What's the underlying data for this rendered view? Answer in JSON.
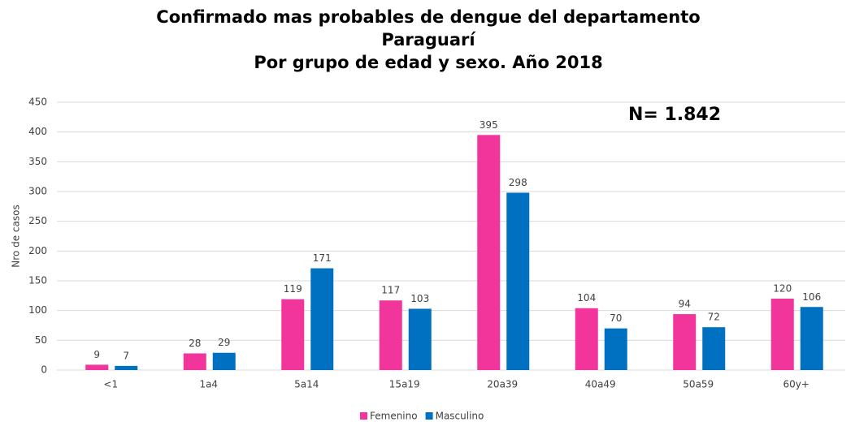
{
  "chart_data": {
    "type": "bar",
    "title": [
      "Confirmado mas probables de dengue del departamento",
      "Paraguarí",
      "Por grupo de edad y sexo. Año 2018"
    ],
    "annotation": "N= 1.842",
    "y_label": "Nro de casos",
    "categories": [
      "<1",
      "1a4",
      "5a14",
      "15a19",
      "20a39",
      "40a49",
      "50a59",
      "60y+"
    ],
    "series": [
      {
        "name": "Femenino",
        "color": "#f2359b",
        "values": [
          9,
          28,
          119,
          117,
          395,
          104,
          94,
          120
        ]
      },
      {
        "name": "Masculino",
        "color": "#0070c0",
        "values": [
          7,
          29,
          171,
          103,
          298,
          70,
          72,
          106
        ]
      }
    ],
    "ylim": [
      0,
      450
    ],
    "yticks": [
      0,
      50,
      100,
      150,
      200,
      250,
      300,
      350,
      400,
      450
    ],
    "grid": true,
    "legend": "bottom"
  }
}
